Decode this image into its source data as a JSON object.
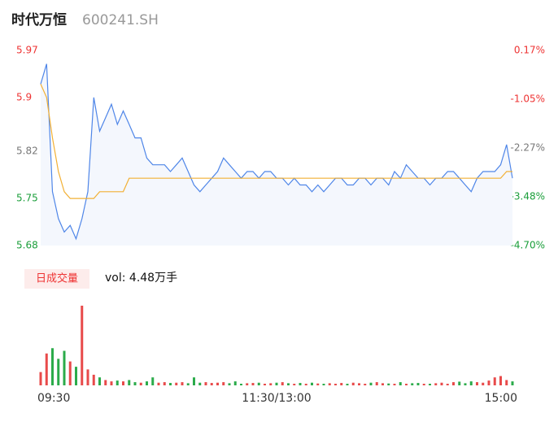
{
  "chart_data": {
    "type": "intraday",
    "title": "时代万恒",
    "subtitle": "600241.SH",
    "volume_badge": "日成交量",
    "volume_text": "vol: 4.48万手",
    "x": [
      0,
      3,
      6,
      9,
      12,
      15,
      18,
      21,
      24,
      27,
      30,
      33,
      36,
      39,
      42,
      45,
      48,
      51,
      54,
      57,
      60,
      63,
      66,
      69,
      72,
      75,
      78,
      81,
      84,
      87,
      90,
      93,
      96,
      99,
      102,
      105,
      108,
      111,
      114,
      117,
      120,
      123,
      126,
      129,
      132,
      135,
      138,
      141,
      144,
      147,
      150,
      153,
      156,
      159,
      162,
      165,
      168,
      171,
      174,
      177,
      180,
      183,
      186,
      189,
      192,
      195,
      198,
      201,
      204,
      207,
      210,
      213,
      216,
      219,
      222,
      225,
      228,
      231,
      234,
      237,
      240
    ],
    "xlim": [
      0,
      240
    ],
    "xticks": [
      {
        "value": 0,
        "label": "09:30"
      },
      {
        "value": 120,
        "label": "11:30/13:00"
      },
      {
        "value": 240,
        "label": "15:00"
      }
    ],
    "ylim": [
      5.68,
      5.97
    ],
    "yticks": [
      5.68,
      5.75,
      5.82,
      5.9,
      {
        "value": 5.97,
        "label": "5.97"
      }
    ],
    "y2lim": [
      -4.7,
      0.17
    ],
    "y2ticks": [
      {
        "value": -4.7,
        "label": "-4.70%"
      },
      {
        "value": -3.48,
        "label": "-3.48%"
      },
      {
        "value": -2.27,
        "label": "-2.27%"
      },
      {
        "value": -1.05,
        "label": "-1.05%"
      },
      {
        "value": 0.17,
        "label": "0.17%"
      }
    ],
    "series": [
      {
        "name": "price",
        "color": "#4f86e8",
        "values": [
          5.92,
          5.95,
          5.76,
          5.72,
          5.7,
          5.71,
          5.69,
          5.72,
          5.76,
          5.9,
          5.85,
          5.87,
          5.89,
          5.86,
          5.88,
          5.86,
          5.84,
          5.84,
          5.81,
          5.8,
          5.8,
          5.8,
          5.79,
          5.8,
          5.81,
          5.79,
          5.77,
          5.76,
          5.77,
          5.78,
          5.79,
          5.81,
          5.8,
          5.79,
          5.78,
          5.79,
          5.79,
          5.78,
          5.79,
          5.79,
          5.78,
          5.78,
          5.77,
          5.78,
          5.77,
          5.77,
          5.76,
          5.77,
          5.76,
          5.77,
          5.78,
          5.78,
          5.77,
          5.77,
          5.78,
          5.78,
          5.77,
          5.78,
          5.78,
          5.77,
          5.79,
          5.78,
          5.8,
          5.79,
          5.78,
          5.78,
          5.77,
          5.78,
          5.78,
          5.79,
          5.79,
          5.78,
          5.77,
          5.76,
          5.78,
          5.79,
          5.79,
          5.79,
          5.8,
          5.83,
          5.78
        ]
      },
      {
        "name": "average",
        "color": "#f2b035",
        "values": [
          5.92,
          5.9,
          5.84,
          5.79,
          5.76,
          5.75,
          5.75,
          5.75,
          5.75,
          5.75,
          5.76,
          5.76,
          5.76,
          5.76,
          5.76,
          5.78,
          5.78,
          5.78,
          5.78,
          5.78,
          5.78,
          5.78,
          5.78,
          5.78,
          5.78,
          5.78,
          5.78,
          5.78,
          5.78,
          5.78,
          5.78,
          5.78,
          5.78,
          5.78,
          5.78,
          5.78,
          5.78,
          5.78,
          5.78,
          5.78,
          5.78,
          5.78,
          5.78,
          5.78,
          5.78,
          5.78,
          5.78,
          5.78,
          5.78,
          5.78,
          5.78,
          5.78,
          5.78,
          5.78,
          5.78,
          5.78,
          5.78,
          5.78,
          5.78,
          5.78,
          5.78,
          5.78,
          5.78,
          5.78,
          5.78,
          5.78,
          5.78,
          5.78,
          5.78,
          5.78,
          5.78,
          5.78,
          5.78,
          5.78,
          5.78,
          5.78,
          5.78,
          5.78,
          5.78,
          5.79,
          5.79
        ]
      }
    ],
    "volume": {
      "up_color": "#e84a4a",
      "down_color": "#2bab4a",
      "values": [
        500,
        1200,
        1400,
        1000,
        1300,
        900,
        700,
        3000,
        600,
        400,
        300,
        200,
        150,
        180,
        150,
        200,
        120,
        100,
        150,
        300,
        100,
        120,
        90,
        100,
        120,
        80,
        300,
        100,
        120,
        90,
        100,
        120,
        80,
        150,
        60,
        80,
        90,
        100,
        60,
        80,
        100,
        120,
        80,
        60,
        90,
        60,
        100,
        70,
        60,
        80,
        60,
        90,
        60,
        100,
        80,
        60,
        100,
        120,
        80,
        70,
        60,
        120,
        60,
        80,
        90,
        60,
        60,
        80,
        100,
        60,
        120,
        140,
        80,
        150,
        120,
        100,
        180,
        300,
        350,
        200,
        150
      ]
    }
  }
}
